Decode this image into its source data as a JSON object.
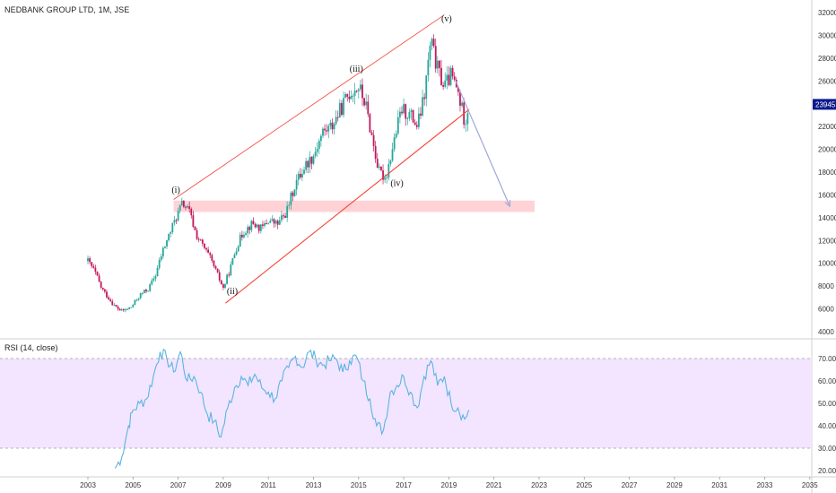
{
  "header": {
    "title": "NEDBANK GROUP LTD, 1M, JSE"
  },
  "rsi_panel": {
    "title": "RSI (14, close)"
  },
  "colors": {
    "up_candle": "#26a69a",
    "down_candle": "#c2185b",
    "channel_line": "#f44336",
    "zone_fill": "#ffcdd2",
    "rsi_line": "#5ab4e0",
    "rsi_band": "#f3e5ff",
    "price_label_bg": "#0d1a8c",
    "arrow": "#9fa8da"
  },
  "chart_data": [
    {
      "type": "candlestick",
      "title": "NEDBANK GROUP LTD, 1M, JSE",
      "ylim": [
        4000,
        32000
      ],
      "y_ticks": [
        4000,
        6000,
        8000,
        10000,
        12000,
        14000,
        16000,
        18000,
        20000,
        22000,
        24000,
        26000,
        28000,
        30000,
        32000
      ],
      "x_ticks": [
        "2003",
        "2005",
        "2007",
        "2009",
        "2011",
        "2013",
        "2015",
        "2017",
        "2019",
        "2021",
        "2023",
        "2025",
        "2027",
        "2029",
        "2031",
        "2033",
        "2035"
      ],
      "last_price_label": "23945",
      "last_price": 23945,
      "price_path": [
        [
          2003.0,
          10200
        ],
        [
          2003.3,
          9300
        ],
        [
          2003.6,
          7800
        ],
        [
          2003.9,
          7000
        ],
        [
          2004.2,
          6200
        ],
        [
          2004.5,
          5800
        ],
        [
          2004.9,
          6100
        ],
        [
          2005.3,
          7200
        ],
        [
          2005.7,
          7800
        ],
        [
          2006.0,
          9000
        ],
        [
          2006.3,
          11000
        ],
        [
          2006.6,
          12500
        ],
        [
          2006.9,
          14000
        ],
        [
          2007.2,
          15300
        ],
        [
          2007.5,
          14500
        ],
        [
          2007.8,
          12500
        ],
        [
          2008.1,
          11500
        ],
        [
          2008.4,
          10500
        ],
        [
          2008.7,
          9200
        ],
        [
          2009.0,
          7800
        ],
        [
          2009.3,
          9500
        ],
        [
          2009.6,
          11500
        ],
        [
          2009.9,
          12800
        ],
        [
          2010.3,
          13500
        ],
        [
          2010.7,
          13000
        ],
        [
          2011.0,
          13800
        ],
        [
          2011.4,
          13400
        ],
        [
          2011.8,
          14500
        ],
        [
          2012.2,
          17000
        ],
        [
          2012.6,
          18500
        ],
        [
          2013.0,
          19500
        ],
        [
          2013.4,
          21500
        ],
        [
          2013.8,
          22000
        ],
        [
          2014.2,
          23500
        ],
        [
          2014.6,
          25000
        ],
        [
          2015.0,
          25500
        ],
        [
          2015.3,
          24000
        ],
        [
          2015.6,
          21000
        ],
        [
          2015.9,
          18000
        ],
        [
          2016.2,
          17500
        ],
        [
          2016.6,
          21000
        ],
        [
          2016.9,
          23500
        ],
        [
          2017.3,
          23000
        ],
        [
          2017.6,
          22000
        ],
        [
          2017.9,
          24500
        ],
        [
          2018.2,
          29500
        ],
        [
          2018.5,
          27000
        ],
        [
          2018.8,
          25500
        ],
        [
          2019.1,
          26500
        ],
        [
          2019.4,
          25000
        ],
        [
          2019.7,
          22500
        ],
        [
          2019.9,
          23945
        ]
      ],
      "annotations": [
        {
          "text": "(i)",
          "x": 2006.9,
          "y": 16200
        },
        {
          "text": "(ii)",
          "x": 2009.4,
          "y": 7300
        },
        {
          "text": "(iii)",
          "x": 2014.9,
          "y": 26800
        },
        {
          "text": "(iv)",
          "x": 2016.7,
          "y": 16800
        },
        {
          "text": "(v)",
          "x": 2018.9,
          "y": 31200
        }
      ],
      "channel": {
        "upper": [
          [
            2006.8,
            15600
          ],
          [
            2018.8,
            31800
          ]
        ],
        "lower": [
          [
            2009.1,
            6500
          ],
          [
            2019.9,
            23500
          ]
        ]
      },
      "support_zone": {
        "x_start": 2006.8,
        "x_end": 2022.8,
        "y_low": 14500,
        "y_high": 15500
      },
      "projection_arrow": {
        "from": [
          2019.3,
          26000
        ],
        "to": [
          2021.7,
          15000
        ]
      }
    },
    {
      "type": "line",
      "title": "RSI (14, close)",
      "ylim": [
        17,
        77
      ],
      "y_ticks": [
        20.0,
        30.0,
        40.0,
        50.0,
        60.0,
        70.0
      ],
      "y_tick_labels": [
        "20.00",
        "30.00",
        "40.00",
        "50.00",
        "60.00",
        "70.00"
      ],
      "band": [
        30,
        70
      ],
      "series": [
        {
          "x": [
            2004.2,
            2004.5,
            2004.8,
            2005.0,
            2005.3,
            2005.6,
            2005.9,
            2006.2,
            2006.5,
            2006.8,
            2007.1,
            2007.4,
            2007.7,
            2008.0,
            2008.3,
            2008.6,
            2008.9,
            2009.2,
            2009.5,
            2009.8,
            2010.1,
            2010.4,
            2010.7,
            2011.0,
            2011.3,
            2011.6,
            2011.9,
            2012.2,
            2012.5,
            2012.8,
            2013.1,
            2013.4,
            2013.7,
            2014.0,
            2014.3,
            2014.6,
            2014.9,
            2015.2,
            2015.5,
            2015.8,
            2016.1,
            2016.4,
            2016.7,
            2017.0,
            2017.3,
            2017.6,
            2017.9,
            2018.2,
            2018.5,
            2018.8,
            2019.1,
            2019.4,
            2019.7,
            2019.9
          ],
          "values": [
            21,
            26,
            40,
            47,
            50,
            52,
            62,
            73,
            70,
            64,
            73,
            60,
            62,
            55,
            45,
            42,
            35,
            48,
            57,
            62,
            58,
            63,
            57,
            55,
            52,
            60,
            66,
            71,
            66,
            73,
            70,
            67,
            69,
            70,
            64,
            69,
            71,
            60,
            52,
            40,
            38,
            55,
            58,
            62,
            55,
            48,
            62,
            69,
            58,
            62,
            50,
            48,
            43,
            47
          ]
        }
      ]
    }
  ]
}
